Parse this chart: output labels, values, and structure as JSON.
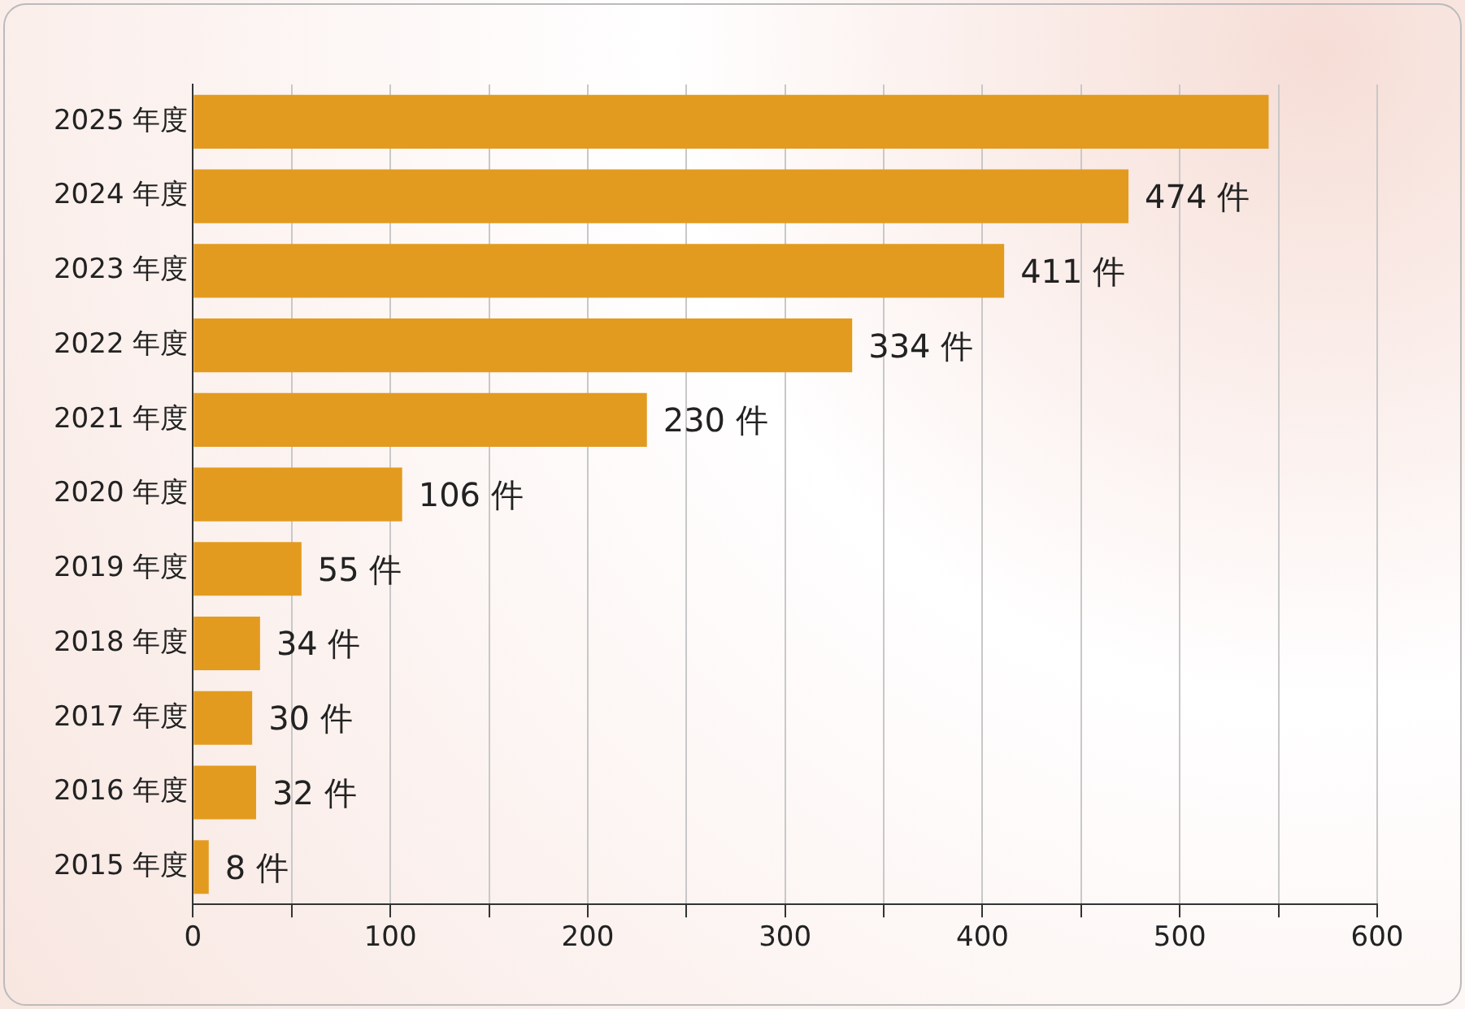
{
  "chart_data": {
    "type": "bar",
    "orientation": "horizontal",
    "categories": [
      "2025 年度",
      "2024 年度",
      "2023 年度",
      "2022 年度",
      "2021 年度",
      "2020 年度",
      "2019 年度",
      "2018 年度",
      "2017 年度",
      "2016 年度",
      "2015 年度"
    ],
    "values": [
      545,
      474,
      411,
      334,
      230,
      106,
      55,
      34,
      30,
      32,
      8
    ],
    "value_labels": [
      null,
      "474 件",
      "411 件",
      "334 件",
      "230 件",
      "106 件",
      "55 件",
      "34 件",
      "30 件",
      "32 件",
      "8 件"
    ],
    "color": "#e39b1f",
    "xlim": [
      0,
      600
    ],
    "xticks": [
      0,
      {
        "value": 50,
        "label": null
      },
      100,
      {
        "value": 150,
        "label": null
      },
      200,
      {
        "value": 250,
        "label": null
      },
      300,
      {
        "value": 350,
        "label": null
      },
      400,
      {
        "value": 450,
        "label": null
      },
      500,
      {
        "value": 550,
        "label": null
      },
      600
    ],
    "grid": "x",
    "legend": false
  }
}
